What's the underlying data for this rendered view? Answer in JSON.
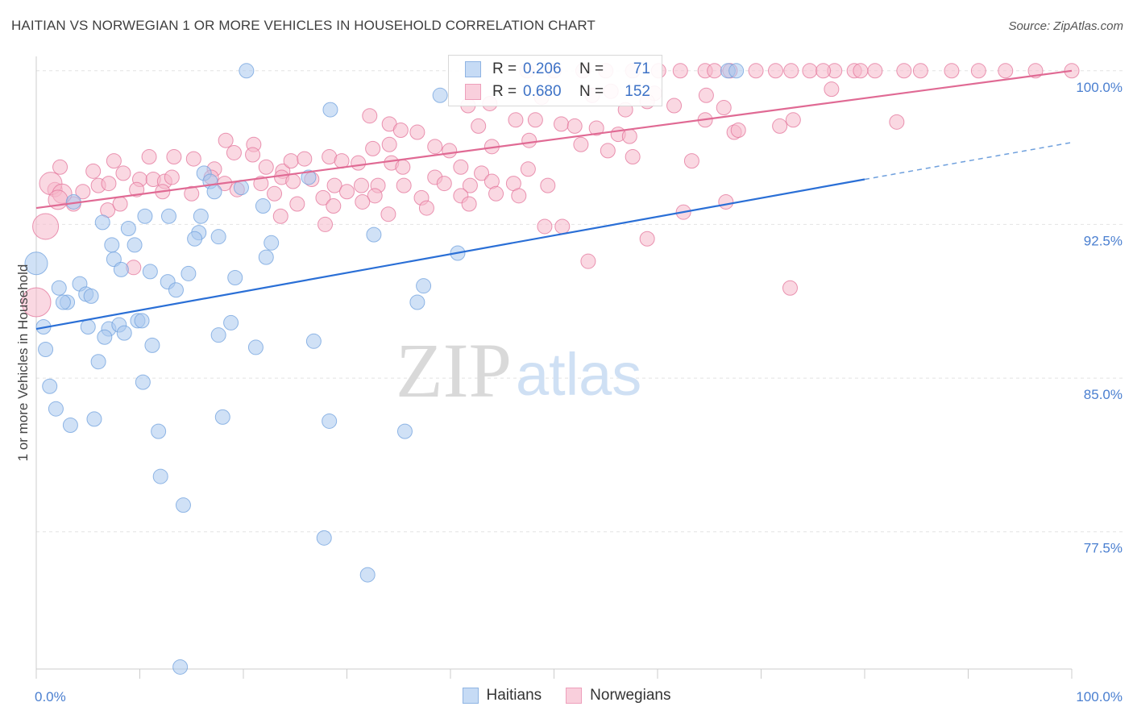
{
  "title": "HAITIAN VS NORWEGIAN 1 OR MORE VEHICLES IN HOUSEHOLD CORRELATION CHART",
  "source": "Source: ZipAtlas.com",
  "watermark": {
    "zip": "ZIP",
    "atlas": "atlas"
  },
  "legend": {
    "r_label": "R = ",
    "n_label": "N = ",
    "rows": [
      {
        "name": "Haitians",
        "r": "0.206",
        "n": "71",
        "fill": "#aac8ef",
        "stroke": "#6fa0dd"
      },
      {
        "name": "Norwegians",
        "r": "0.680",
        "n": "152",
        "fill": "#f6b8cb",
        "stroke": "#ea8fac"
      }
    ]
  },
  "chart_data": {
    "type": "scatter",
    "title": "HAITIAN VS NORWEGIAN 1 OR MORE VEHICLES IN HOUSEHOLD CORRELATION CHART",
    "xlabel": "",
    "ylabel": "1 or more Vehicles in Household",
    "xlim": [
      0,
      100
    ],
    "ylim": [
      70.8,
      100.7
    ],
    "x_tick_labels": [
      "0.0%",
      "100.0%"
    ],
    "y_ticks": [
      77.5,
      85.0,
      92.5,
      100.0
    ],
    "y_tick_labels": [
      "77.5%",
      "85.0%",
      "92.5%",
      "100.0%"
    ],
    "grid": true,
    "legend_position": "top-center",
    "series": [
      {
        "name": "Haitians",
        "color": "#6fa0dd",
        "fill": "#aac8ef",
        "trend": {
          "x0": 0,
          "y0": 87.4,
          "x1": 80,
          "y1": 94.7,
          "dash_to_x": 100,
          "dash_to_y": 96.5
        },
        "points": [
          [
            20.3,
            100.0,
            9
          ],
          [
            39.0,
            98.8,
            9
          ],
          [
            28.4,
            98.1,
            9
          ],
          [
            66.8,
            100.0,
            9
          ],
          [
            67.6,
            100.0,
            9
          ],
          [
            16.2,
            95.0,
            9
          ],
          [
            16.8,
            94.6,
            9
          ],
          [
            17.2,
            94.1,
            9
          ],
          [
            19.8,
            94.3,
            9
          ],
          [
            26.3,
            94.8,
            9
          ],
          [
            3.6,
            93.6,
            9
          ],
          [
            21.9,
            93.4,
            9
          ],
          [
            6.4,
            92.6,
            9
          ],
          [
            8.9,
            92.3,
            9
          ],
          [
            10.5,
            92.9,
            9
          ],
          [
            12.8,
            92.9,
            9
          ],
          [
            15.7,
            92.1,
            9
          ],
          [
            15.9,
            92.9,
            9
          ],
          [
            7.3,
            91.5,
            9
          ],
          [
            9.5,
            91.5,
            9
          ],
          [
            15.3,
            91.8,
            9
          ],
          [
            17.6,
            91.9,
            9
          ],
          [
            22.7,
            91.6,
            9
          ],
          [
            32.6,
            92.0,
            9
          ],
          [
            40.7,
            91.1,
            9
          ],
          [
            7.5,
            90.8,
            9
          ],
          [
            8.2,
            90.3,
            9
          ],
          [
            11.0,
            90.2,
            9
          ],
          [
            0.0,
            90.6,
            14
          ],
          [
            12.7,
            89.7,
            9
          ],
          [
            14.7,
            90.1,
            9
          ],
          [
            19.2,
            89.9,
            9
          ],
          [
            22.2,
            90.9,
            9
          ],
          [
            2.2,
            89.4,
            9
          ],
          [
            4.2,
            89.6,
            9
          ],
          [
            13.5,
            89.3,
            9
          ],
          [
            3.0,
            88.7,
            9
          ],
          [
            4.8,
            89.1,
            9
          ],
          [
            5.3,
            89.0,
            9
          ],
          [
            37.4,
            89.5,
            9
          ],
          [
            2.6,
            88.7,
            9
          ],
          [
            36.8,
            88.7,
            9
          ],
          [
            0.7,
            87.5,
            9
          ],
          [
            5.0,
            87.5,
            9
          ],
          [
            7.0,
            87.4,
            9
          ],
          [
            8.0,
            87.6,
            9
          ],
          [
            9.8,
            87.8,
            9
          ],
          [
            10.2,
            87.8,
            9
          ],
          [
            18.8,
            87.7,
            9
          ],
          [
            6.6,
            87.0,
            9
          ],
          [
            8.5,
            87.2,
            9
          ],
          [
            17.6,
            87.1,
            9
          ],
          [
            26.8,
            86.8,
            9
          ],
          [
            0.9,
            86.4,
            9
          ],
          [
            11.2,
            86.6,
            9
          ],
          [
            21.2,
            86.5,
            9
          ],
          [
            6.0,
            85.8,
            9
          ],
          [
            1.3,
            84.6,
            9
          ],
          [
            10.3,
            84.8,
            9
          ],
          [
            1.9,
            83.5,
            9
          ],
          [
            3.3,
            82.7,
            9
          ],
          [
            5.6,
            83.0,
            9
          ],
          [
            11.8,
            82.4,
            9
          ],
          [
            18.0,
            83.1,
            9
          ],
          [
            28.3,
            82.9,
            9
          ],
          [
            35.6,
            82.4,
            9
          ],
          [
            12.0,
            80.2,
            9
          ],
          [
            14.2,
            78.8,
            9
          ],
          [
            27.8,
            77.2,
            9
          ],
          [
            32.0,
            75.4,
            9
          ],
          [
            13.9,
            70.9,
            9
          ]
        ]
      },
      {
        "name": "Norwegians",
        "color": "#e37399",
        "fill": "#f6b8cb",
        "trend": {
          "x0": 0,
          "y0": 93.3,
          "x1": 100,
          "y1": 100.0
        },
        "points": [
          [
            60.1,
            100.0,
            9
          ],
          [
            64.6,
            100.0,
            9
          ],
          [
            67.0,
            100.0,
            9
          ],
          [
            69.5,
            100.0,
            9
          ],
          [
            71.4,
            100.0,
            9
          ],
          [
            72.9,
            100.0,
            9
          ],
          [
            74.7,
            100.0,
            9
          ],
          [
            77.1,
            100.0,
            9
          ],
          [
            79.0,
            100.0,
            9
          ],
          [
            81.0,
            100.0,
            9
          ],
          [
            83.8,
            100.0,
            9
          ],
          [
            85.4,
            100.0,
            9
          ],
          [
            88.4,
            100.0,
            9
          ],
          [
            91.0,
            100.0,
            9
          ],
          [
            93.6,
            100.0,
            9
          ],
          [
            96.5,
            100.0,
            9
          ],
          [
            100.0,
            100.0,
            9
          ],
          [
            47.4,
            100.0,
            9
          ],
          [
            50.0,
            100.0,
            9
          ],
          [
            52.8,
            100.0,
            9
          ],
          [
            55.0,
            100.0,
            9
          ],
          [
            57.6,
            100.0,
            9
          ],
          [
            62.2,
            100.0,
            9
          ],
          [
            65.5,
            100.0,
            9
          ],
          [
            76.0,
            100.0,
            9
          ],
          [
            79.6,
            100.0,
            9
          ],
          [
            55.5,
            99.0,
            9
          ],
          [
            59.7,
            98.9,
            9
          ],
          [
            64.7,
            98.8,
            9
          ],
          [
            76.8,
            99.1,
            9
          ],
          [
            48.8,
            98.7,
            9
          ],
          [
            53.7,
            98.8,
            9
          ],
          [
            41.7,
            98.3,
            9
          ],
          [
            43.8,
            98.4,
            9
          ],
          [
            56.9,
            98.1,
            9
          ],
          [
            59.0,
            98.5,
            9
          ],
          [
            64.6,
            97.6,
            9
          ],
          [
            66.4,
            98.2,
            9
          ],
          [
            32.2,
            97.8,
            9
          ],
          [
            34.1,
            97.4,
            9
          ],
          [
            35.2,
            97.1,
            9
          ],
          [
            36.8,
            97.0,
            9
          ],
          [
            42.7,
            97.3,
            9
          ],
          [
            46.3,
            97.6,
            9
          ],
          [
            48.2,
            97.6,
            9
          ],
          [
            50.7,
            97.4,
            9
          ],
          [
            52.0,
            97.3,
            9
          ],
          [
            54.1,
            97.2,
            9
          ],
          [
            56.2,
            96.9,
            9
          ],
          [
            57.3,
            96.8,
            9
          ],
          [
            61.6,
            98.3,
            9
          ],
          [
            67.4,
            97.0,
            9
          ],
          [
            67.8,
            97.1,
            9
          ],
          [
            71.8,
            97.3,
            9
          ],
          [
            73.1,
            97.6,
            9
          ],
          [
            83.1,
            97.5,
            9
          ],
          [
            18.3,
            96.6,
            9
          ],
          [
            21.0,
            96.4,
            9
          ],
          [
            32.5,
            96.2,
            9
          ],
          [
            34.1,
            96.4,
            9
          ],
          [
            38.5,
            96.3,
            9
          ],
          [
            39.9,
            96.1,
            9
          ],
          [
            44.0,
            96.3,
            9
          ],
          [
            47.6,
            96.6,
            9
          ],
          [
            52.6,
            96.4,
            9
          ],
          [
            55.2,
            96.1,
            9
          ],
          [
            57.6,
            95.8,
            9
          ],
          [
            63.3,
            95.6,
            9
          ],
          [
            7.5,
            95.6,
            9
          ],
          [
            10.9,
            95.8,
            9
          ],
          [
            13.3,
            95.8,
            9
          ],
          [
            15.2,
            95.7,
            9
          ],
          [
            17.2,
            95.2,
            9
          ],
          [
            19.1,
            96.0,
            9
          ],
          [
            20.9,
            95.9,
            9
          ],
          [
            22.2,
            95.3,
            9
          ],
          [
            23.8,
            95.1,
            9
          ],
          [
            24.6,
            95.6,
            9
          ],
          [
            25.9,
            95.7,
            9
          ],
          [
            28.3,
            95.8,
            9
          ],
          [
            29.5,
            95.6,
            9
          ],
          [
            31.1,
            95.5,
            9
          ],
          [
            34.3,
            95.5,
            9
          ],
          [
            35.4,
            95.3,
            9
          ],
          [
            41.0,
            95.3,
            9
          ],
          [
            43.0,
            95.0,
            9
          ],
          [
            47.5,
            95.2,
            9
          ],
          [
            2.3,
            95.3,
            9
          ],
          [
            5.5,
            95.1,
            9
          ],
          [
            8.4,
            95.0,
            9
          ],
          [
            10.0,
            94.7,
            9
          ],
          [
            11.3,
            94.7,
            9
          ],
          [
            12.4,
            94.6,
            9
          ],
          [
            13.1,
            94.8,
            9
          ],
          [
            16.9,
            94.8,
            9
          ],
          [
            18.2,
            94.5,
            9
          ],
          [
            21.7,
            94.5,
            9
          ],
          [
            23.7,
            94.8,
            9
          ],
          [
            24.8,
            94.6,
            9
          ],
          [
            26.6,
            94.7,
            9
          ],
          [
            28.8,
            94.4,
            9
          ],
          [
            30.0,
            94.1,
            9
          ],
          [
            31.4,
            94.4,
            9
          ],
          [
            33.0,
            94.4,
            9
          ],
          [
            35.5,
            94.4,
            9
          ],
          [
            38.5,
            94.8,
            9
          ],
          [
            39.4,
            94.5,
            9
          ],
          [
            41.9,
            94.4,
            9
          ],
          [
            44.0,
            94.6,
            9
          ],
          [
            46.1,
            94.5,
            9
          ],
          [
            49.4,
            94.4,
            9
          ],
          [
            1.8,
            94.2,
            9
          ],
          [
            4.5,
            94.1,
            9
          ],
          [
            6.0,
            94.4,
            9
          ],
          [
            7.0,
            94.5,
            9
          ],
          [
            9.7,
            94.2,
            9
          ],
          [
            12.2,
            94.1,
            9
          ],
          [
            15.0,
            94.0,
            9
          ],
          [
            19.4,
            94.2,
            9
          ],
          [
            23.0,
            94.0,
            9
          ],
          [
            27.7,
            93.8,
            9
          ],
          [
            32.7,
            93.9,
            9
          ],
          [
            37.2,
            93.8,
            9
          ],
          [
            41.0,
            93.9,
            9
          ],
          [
            44.4,
            94.0,
            9
          ],
          [
            3.6,
            93.5,
            9
          ],
          [
            6.9,
            93.2,
            9
          ],
          [
            8.1,
            93.5,
            9
          ],
          [
            25.2,
            93.5,
            9
          ],
          [
            28.7,
            93.4,
            9
          ],
          [
            31.5,
            93.6,
            9
          ],
          [
            34.0,
            93.0,
            9
          ],
          [
            37.7,
            93.3,
            9
          ],
          [
            41.8,
            93.5,
            9
          ],
          [
            46.6,
            93.9,
            9
          ],
          [
            1.4,
            94.5,
            14
          ],
          [
            2.5,
            94.0,
            12
          ],
          [
            2.1,
            93.7,
            12
          ],
          [
            0.9,
            92.4,
            16
          ],
          [
            23.6,
            92.9,
            9
          ],
          [
            27.9,
            92.5,
            9
          ],
          [
            49.1,
            92.4,
            9
          ],
          [
            62.5,
            93.1,
            9
          ],
          [
            66.6,
            93.6,
            9
          ],
          [
            50.8,
            92.4,
            9
          ],
          [
            59.0,
            91.8,
            9
          ],
          [
            53.3,
            90.7,
            9
          ],
          [
            72.8,
            89.4,
            9
          ],
          [
            0.0,
            88.7,
            18
          ],
          [
            9.4,
            90.4,
            9
          ]
        ]
      }
    ]
  }
}
